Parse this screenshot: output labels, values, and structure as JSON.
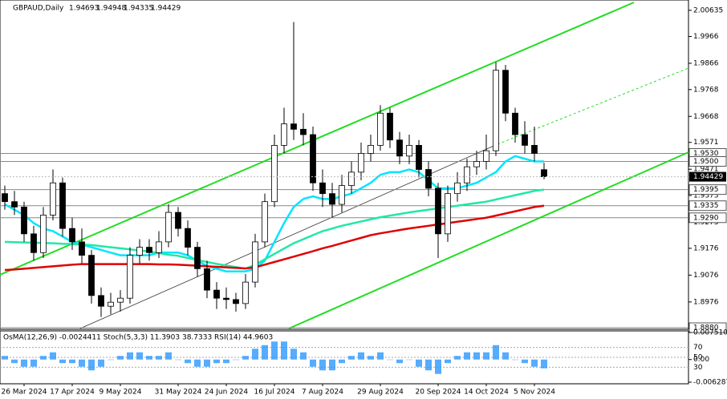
{
  "chart_data": {
    "type": "candlestick",
    "symbol": "GBPAUD,Daily",
    "header_quote": [
      1.94693,
      1.94948,
      1.94335,
      1.94429
    ],
    "categories": [
      null,
      null,
      "26 Mar 2024",
      null,
      null,
      null,
      null,
      "17 Apr 2024",
      null,
      null,
      null,
      null,
      "9 May 2024",
      null,
      null,
      null,
      null,
      null,
      "31 May 2024",
      null,
      null,
      null,
      null,
      "24 Jun 2024",
      null,
      null,
      null,
      null,
      "16 Jul 2024",
      null,
      null,
      null,
      null,
      "7 Aug 2024",
      null,
      null,
      null,
      null,
      null,
      "29 Aug 2024",
      null,
      null,
      null,
      null,
      null,
      "20 Sep 2024",
      null,
      null,
      null,
      null,
      "14 Oct 2024",
      null,
      null,
      null,
      null,
      "5 Nov 2024",
      null
    ],
    "candles": [
      [
        1.938,
        1.941,
        1.932,
        1.935
      ],
      [
        1.935,
        1.939,
        1.93,
        1.933
      ],
      [
        1.933,
        1.935,
        1.92,
        1.923
      ],
      [
        1.923,
        1.926,
        1.913,
        1.916
      ],
      [
        1.916,
        1.933,
        1.914,
        1.93
      ],
      [
        1.93,
        1.947,
        1.928,
        1.942
      ],
      [
        1.942,
        1.944,
        1.922,
        1.925
      ],
      [
        1.925,
        1.929,
        1.917,
        1.92
      ],
      [
        1.92,
        1.925,
        1.912,
        1.915
      ],
      [
        1.915,
        1.917,
        1.897,
        1.9
      ],
      [
        1.9,
        1.903,
        1.892,
        1.896
      ],
      [
        1.896,
        1.901,
        1.893,
        1.8975
      ],
      [
        1.8975,
        1.902,
        1.894,
        1.899
      ],
      [
        1.899,
        1.918,
        1.897,
        1.915
      ],
      [
        1.915,
        1.921,
        1.912,
        1.918
      ],
      [
        1.918,
        1.921,
        1.913,
        1.916
      ],
      [
        1.916,
        1.924,
        1.914,
        1.92
      ],
      [
        1.92,
        1.934,
        1.918,
        1.931
      ],
      [
        1.931,
        1.933,
        1.922,
        1.925
      ],
      [
        1.925,
        1.928,
        1.915,
        1.918
      ],
      [
        1.918,
        1.92,
        1.907,
        1.91
      ],
      [
        1.91,
        1.913,
        1.899,
        1.902
      ],
      [
        1.902,
        1.905,
        1.895,
        1.899
      ],
      [
        1.899,
        1.903,
        1.895,
        1.8985
      ],
      [
        1.8985,
        1.901,
        1.894,
        1.897
      ],
      [
        1.897,
        1.908,
        1.895,
        1.905
      ],
      [
        1.905,
        1.923,
        1.903,
        1.92
      ],
      [
        1.92,
        1.938,
        1.918,
        1.935
      ],
      [
        1.935,
        1.96,
        1.933,
        1.956
      ],
      [
        1.956,
        1.97,
        1.953,
        1.964
      ],
      [
        1.964,
        2.002,
        1.958,
        1.962
      ],
      [
        1.962,
        1.968,
        1.956,
        1.96
      ],
      [
        1.96,
        1.963,
        1.939,
        1.942
      ],
      [
        1.942,
        1.947,
        1.933,
        1.938
      ],
      [
        1.938,
        1.942,
        1.929,
        1.934
      ],
      [
        1.934,
        1.945,
        1.931,
        1.941
      ],
      [
        1.941,
        1.95,
        1.938,
        1.946
      ],
      [
        1.946,
        1.957,
        1.943,
        1.953
      ],
      [
        1.953,
        1.96,
        1.95,
        1.956
      ],
      [
        1.956,
        1.971,
        1.954,
        1.968
      ],
      [
        1.968,
        1.97,
        1.955,
        1.958
      ],
      [
        1.958,
        1.961,
        1.949,
        1.952
      ],
      [
        1.952,
        1.96,
        1.949,
        1.956
      ],
      [
        1.956,
        1.958,
        1.944,
        1.947
      ],
      [
        1.947,
        1.95,
        1.937,
        1.94
      ],
      [
        1.94,
        1.942,
        1.914,
        1.923
      ],
      [
        1.923,
        1.941,
        1.92,
        1.938
      ],
      [
        1.938,
        1.946,
        1.935,
        1.942
      ],
      [
        1.942,
        1.951,
        1.939,
        1.948
      ],
      [
        1.948,
        1.954,
        1.945,
        1.95
      ],
      [
        1.95,
        1.96,
        1.947,
        1.954
      ],
      [
        1.954,
        1.987,
        1.952,
        1.984
      ],
      [
        1.984,
        1.986,
        1.965,
        1.968
      ],
      [
        1.968,
        1.97,
        1.957,
        1.96
      ],
      [
        1.96,
        1.965,
        1.953,
        1.956
      ],
      [
        1.956,
        1.963,
        1.95,
        1.953
      ],
      [
        1.94693,
        1.94948,
        1.94335,
        1.94429
      ]
    ],
    "series": [
      {
        "color": "#00e5ff",
        "values": [
          1.934,
          1.932,
          1.93,
          1.927,
          1.925,
          1.924,
          1.922,
          1.92,
          1.919,
          1.918,
          1.917,
          1.916,
          1.915,
          1.915,
          1.915,
          1.915,
          1.916,
          1.916,
          1.916,
          1.915,
          1.913,
          1.911,
          1.91,
          1.909,
          1.909,
          1.909,
          1.91,
          1.913,
          1.92,
          1.927,
          1.933,
          1.936,
          1.937,
          1.936,
          1.936,
          1.937,
          1.938,
          1.94,
          1.942,
          1.945,
          1.946,
          1.946,
          1.947,
          1.946,
          1.943,
          1.94,
          1.94,
          1.94,
          1.941,
          1.942,
          1.944,
          1.946,
          1.95,
          1.952,
          1.951,
          1.95,
          1.95
        ]
      },
      {
        "color": "#20e8a8",
        "values": [
          1.92,
          1.9199,
          1.9198,
          1.9197,
          1.9196,
          1.9195,
          1.9193,
          1.9192,
          1.919,
          1.9188,
          1.9184,
          1.918,
          1.9176,
          1.9172,
          1.9168,
          1.9164,
          1.9158,
          1.9152,
          1.9148,
          1.914,
          1.9132,
          1.9125,
          1.9118,
          1.9112,
          1.9106,
          1.91,
          1.9115,
          1.9135,
          1.9155,
          1.9175,
          1.9195,
          1.921,
          1.9225,
          1.924,
          1.925,
          1.926,
          1.9268,
          1.9276,
          1.9284,
          1.9292,
          1.9298,
          1.9304,
          1.931,
          1.9315,
          1.932,
          1.9325,
          1.933,
          1.9335,
          1.934,
          1.9345,
          1.935,
          1.9358,
          1.9366,
          1.9374,
          1.9382,
          1.939,
          1.9395
        ]
      },
      {
        "color": "#e00000",
        "values": [
          1.9095,
          1.9097,
          1.91,
          1.9103,
          1.9106,
          1.9109,
          1.9112,
          1.9115,
          1.9117,
          1.9117,
          1.9117,
          1.9117,
          1.9117,
          1.9117,
          1.9117,
          1.9117,
          1.9116,
          1.9116,
          1.9115,
          1.9113,
          1.9111,
          1.9109,
          1.9107,
          1.9105,
          1.9103,
          1.9101,
          1.9105,
          1.9115,
          1.9125,
          1.9135,
          1.9145,
          1.9155,
          1.9165,
          1.9176,
          1.9185,
          1.9195,
          1.9205,
          1.9215,
          1.9225,
          1.9232,
          1.9238,
          1.9244,
          1.925,
          1.9255,
          1.926,
          1.9265,
          1.927,
          1.9275,
          1.928,
          1.9285,
          1.929,
          1.9298,
          1.9306,
          1.9314,
          1.9322,
          1.933,
          1.9335
        ]
      }
    ],
    "ylim": [
      1.8877,
      2.0102
    ],
    "yticks": [
      2.00635,
      1.9966,
      1.9866,
      1.9768,
      1.9668,
      1.9571,
      1.9471,
      1.9373,
      1.9273,
      1.9176,
      1.9076,
      1.8976
    ],
    "levels": [
      {
        "value": 1.953,
        "label": "1.9530"
      },
      {
        "value": 1.95,
        "label": "1.9500"
      },
      {
        "value": 1.9395,
        "label": "1.9395"
      },
      {
        "value": 1.9335,
        "label": "1.9335"
      },
      {
        "value": 1.929,
        "label": "1.9290"
      },
      {
        "value": 1.888,
        "label": "1.8880"
      }
    ],
    "last_price": 1.94429,
    "indicator": {
      "title": "OsMA(12,26,9) -0.0024411  Stoch(5,3,3) 11.3903 38.7333  RSI(14) 44.9603",
      "color": "#1e90ff",
      "values": [
        0.001,
        -0.001,
        -0.002,
        -0.002,
        0.001,
        0.002,
        -0.001,
        -0.001,
        -0.002,
        -0.003,
        -0.002,
        0,
        0.001,
        0.002,
        0.002,
        0.001,
        0.001,
        0.002,
        0,
        -0.001,
        -0.002,
        -0.002,
        -0.001,
        -0.001,
        0,
        0.001,
        0.003,
        0.004,
        0.005,
        0.005,
        0.003,
        0.002,
        -0.002,
        -0.003,
        -0.003,
        -0.001,
        0.001,
        0.002,
        0.001,
        0.002,
        0,
        -0.001,
        0,
        -0.002,
        -0.003,
        -0.004,
        -0.001,
        0.001,
        0.002,
        0.002,
        0.002,
        0.004,
        0.002,
        0,
        -0.001,
        -0.002,
        -0.0024411
      ],
      "ylim": [
        -0.006287,
        0.0075104
      ],
      "yticks": [
        0.0075104,
        {
          "value": 0,
          "label": "0.00"
        },
        -0.006287
      ],
      "stoch_ylim": [
        0,
        100
      ],
      "stoch_yticks": [
        70,
        50,
        30
      ]
    }
  }
}
